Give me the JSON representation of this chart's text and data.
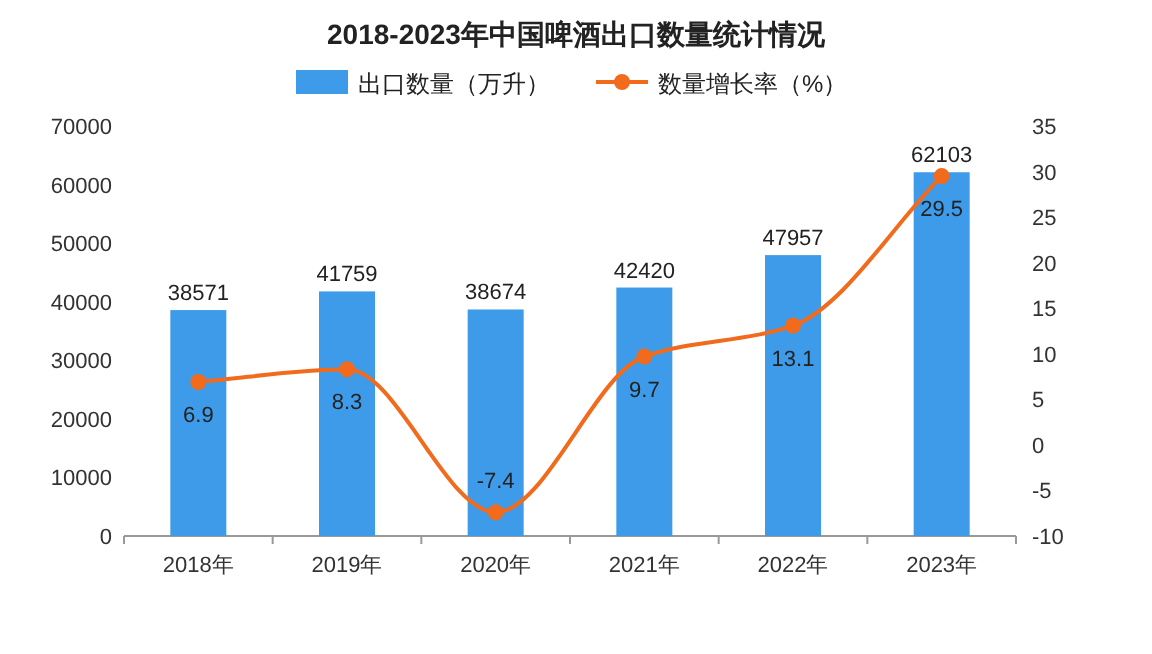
{
  "chart_data": {
    "type": "bar",
    "title": "2018-2023年中国啤酒出口数量统计情况",
    "categories": [
      "2018年",
      "2019年",
      "2020年",
      "2021年",
      "2022年",
      "2023年"
    ],
    "series": [
      {
        "name": "出口数量（万升）",
        "color": "#3d9be9",
        "values": [
          38571,
          41759,
          38674,
          42420,
          47957,
          62103
        ]
      },
      {
        "name": "数量增长率（%）",
        "type": "line",
        "axis": "y2",
        "color": "#f26b1d",
        "values": [
          6.9,
          8.3,
          -7.4,
          9.7,
          13.1,
          29.5
        ]
      }
    ],
    "ylim": [
      0,
      70000
    ],
    "yticks": [
      0,
      10000,
      20000,
      30000,
      40000,
      50000,
      60000,
      70000
    ],
    "y2lim": [
      -10,
      35
    ],
    "y2ticks": [
      -10,
      -5,
      0,
      5,
      10,
      15,
      20,
      25,
      30,
      35
    ],
    "data_labels": true,
    "legend": "top",
    "marker": "circle"
  }
}
